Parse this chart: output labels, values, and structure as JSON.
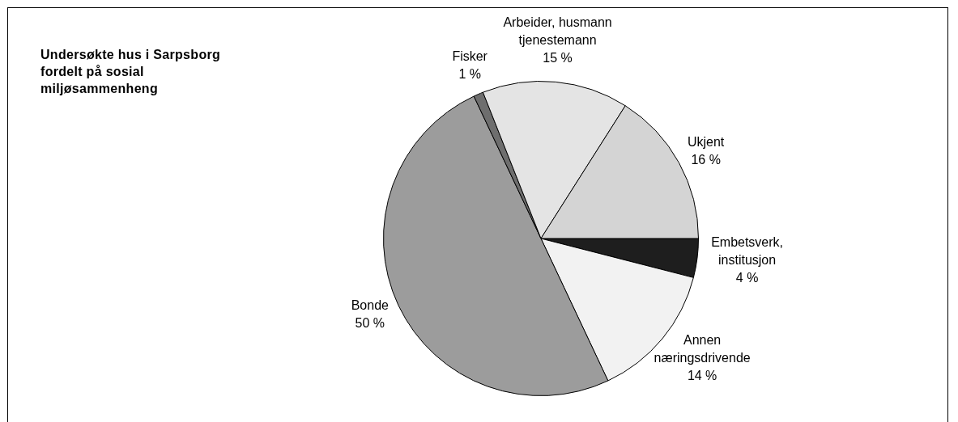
{
  "chart_data": {
    "type": "pie",
    "title": "Undersøkte hus i Sarpsborg fordelt på sosial miljøsammenheng",
    "categories": [
      "Embetsverk, institusjon",
      "Annen næringsdrivende",
      "Bonde",
      "Fisker",
      "Arbeider, husmann tjenestemann",
      "Ukjent"
    ],
    "values": [
      4,
      14,
      50,
      1,
      15,
      16
    ],
    "value_labels": [
      "4 %",
      "14 %",
      "50 %",
      "1 %",
      "15 %",
      "16 %"
    ],
    "colors": [
      "#1e1e1e",
      "#f2f2f2",
      "#9c9c9c",
      "#6e6e6e",
      "#e4e4e4",
      "#d4d4d4"
    ],
    "legend": false
  }
}
